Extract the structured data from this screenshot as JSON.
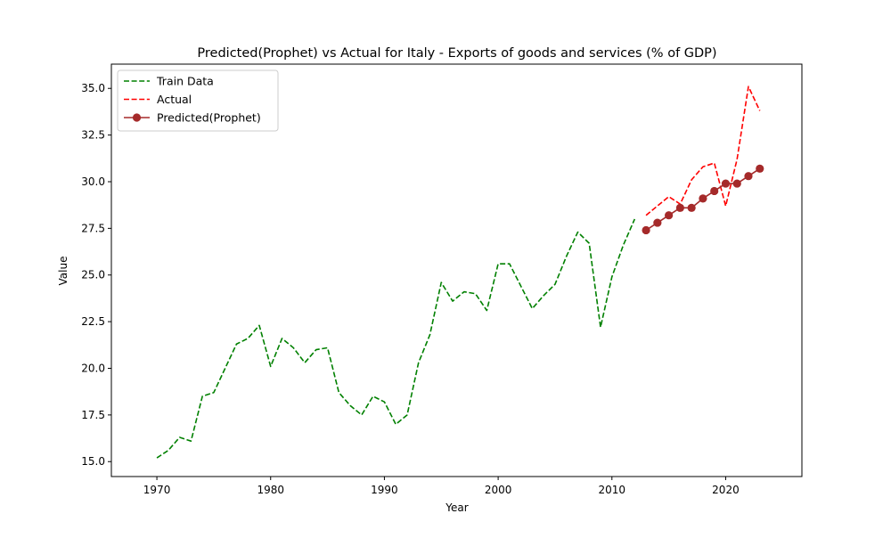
{
  "chart_data": {
    "type": "line",
    "title": "Predicted(Prophet) vs Actual for Italy - Exports of goods and services (% of GDP)",
    "xlabel": "Year",
    "ylabel": "Value",
    "xlim": [
      1966,
      2026.7
    ],
    "ylim": [
      14.2,
      36.3
    ],
    "xticks": [
      1970,
      1980,
      1990,
      2000,
      2010,
      2020
    ],
    "yticks": [
      15.0,
      17.5,
      20.0,
      22.5,
      25.0,
      27.5,
      30.0,
      32.5,
      35.0
    ],
    "ytick_labels": [
      "15.0",
      "17.5",
      "20.0",
      "22.5",
      "25.0",
      "27.5",
      "30.0",
      "32.5",
      "35.0"
    ],
    "grid": false,
    "legend_position": "top-left",
    "series": [
      {
        "name": "Train Data",
        "color": "#008000",
        "style": "dashed",
        "marker": "none",
        "x": [
          1970,
          1971,
          1972,
          1973,
          1974,
          1975,
          1976,
          1977,
          1978,
          1979,
          1980,
          1981,
          1982,
          1983,
          1984,
          1985,
          1986,
          1987,
          1988,
          1989,
          1990,
          1991,
          1992,
          1993,
          1994,
          1995,
          1996,
          1997,
          1998,
          1999,
          2000,
          2001,
          2002,
          2003,
          2004,
          2005,
          2006,
          2007,
          2008,
          2009,
          2010,
          2011,
          2012
        ],
        "values": [
          15.2,
          15.6,
          16.3,
          16.1,
          18.5,
          18.7,
          20.0,
          21.3,
          21.6,
          22.3,
          20.1,
          21.6,
          21.1,
          20.3,
          21.0,
          21.1,
          18.7,
          18.0,
          17.5,
          18.5,
          18.2,
          17.0,
          17.5,
          20.3,
          21.8,
          24.6,
          23.6,
          24.1,
          24.0,
          23.1,
          25.6,
          25.6,
          24.4,
          23.2,
          23.9,
          24.5,
          26.0,
          27.3,
          26.7,
          22.2,
          24.9,
          26.6,
          28.0
        ]
      },
      {
        "name": "Actual",
        "color": "#ff0000",
        "style": "dashed",
        "marker": "none",
        "x": [
          2013,
          2014,
          2015,
          2016,
          2017,
          2018,
          2019,
          2020,
          2021,
          2022,
          2023
        ],
        "values": [
          28.2,
          28.7,
          29.2,
          28.8,
          30.1,
          30.8,
          31.0,
          28.7,
          31.2,
          35.1,
          33.8
        ]
      },
      {
        "name": "Predicted(Prophet)",
        "color": "#a52a2a",
        "style": "solid",
        "marker": "circle",
        "x": [
          2013,
          2014,
          2015,
          2016,
          2017,
          2018,
          2019,
          2020,
          2021,
          2022,
          2023
        ],
        "values": [
          27.4,
          27.8,
          28.2,
          28.6,
          28.6,
          29.1,
          29.5,
          29.9,
          29.9,
          30.3,
          30.7
        ]
      }
    ]
  }
}
